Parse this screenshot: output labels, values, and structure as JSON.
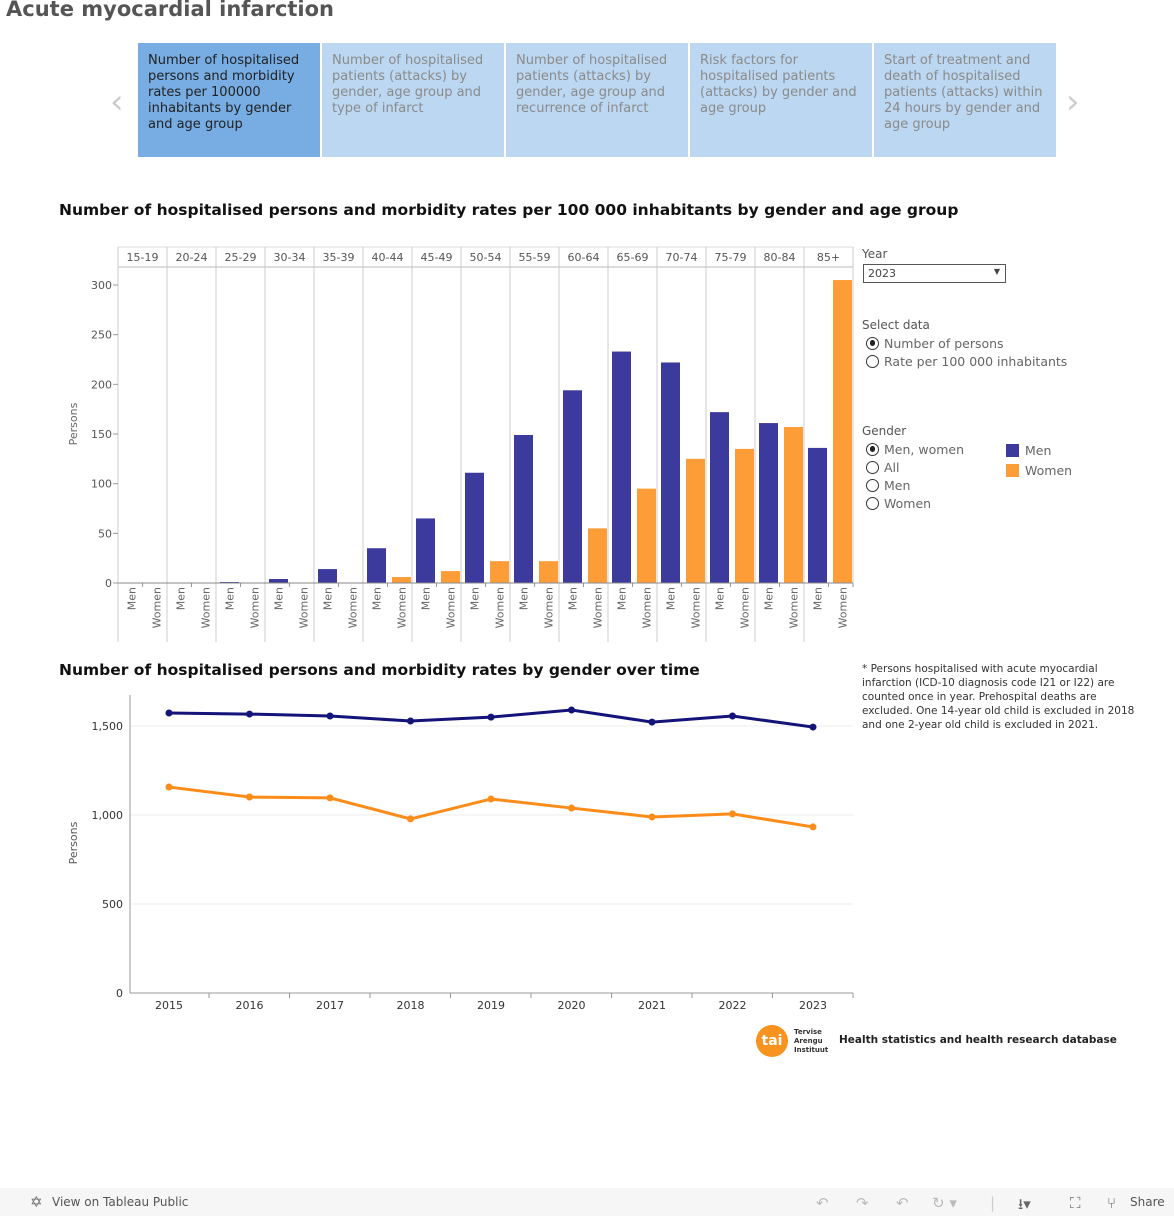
{
  "page_title": "Acute myocardial infarction",
  "tabs": [
    {
      "label": "Number of hospitalised persons and morbidity rates per 100000 inhabitants by gender and age group",
      "active": true
    },
    {
      "label": "Number of hospitalised patients (attacks) by gender, age group and type of infarct",
      "active": false
    },
    {
      "label": "Number of hospitalised patients (attacks) by gender, age group and recurrence of infarct",
      "active": false
    },
    {
      "label": "Risk factors for hospitalised patients (attacks) by gender and age group",
      "active": false
    },
    {
      "label": "Start of treatment and death of hospitalised patients (attacks) within 24 hours by gender and age group",
      "active": false
    }
  ],
  "nav": {
    "prev_icon": "chevron-left",
    "next_icon": "chevron-right"
  },
  "filters": {
    "year_label": "Year",
    "year_value": "2023",
    "select_data_label": "Select data",
    "select_data_options": [
      "Number of persons",
      "Rate per 100 000 inhabitants"
    ],
    "select_data_selected": 0,
    "gender_label": "Gender",
    "gender_options": [
      "Men, women",
      "All",
      "Men",
      "Women"
    ],
    "gender_selected": 0
  },
  "legend": [
    {
      "label": "Men",
      "color": "#3c3a9c"
    },
    {
      "label": "Women",
      "color": "#fd9d37"
    }
  ],
  "chart_data": [
    {
      "type": "bar",
      "title": "Number of hospitalised persons and morbidity rates per 100 000 inhabitants by gender and age group",
      "ylabel": "Persons",
      "ylim": [
        0,
        320
      ],
      "yticks": [
        0,
        50,
        100,
        150,
        200,
        250,
        300
      ],
      "categories": [
        "15-19",
        "20-24",
        "25-29",
        "30-34",
        "35-39",
        "40-44",
        "45-49",
        "50-54",
        "55-59",
        "60-64",
        "65-69",
        "70-74",
        "75-79",
        "80-84",
        "85+"
      ],
      "subcategories": [
        "Men",
        "Women"
      ],
      "series": [
        {
          "name": "Men",
          "color": "#3c3a9c",
          "values": [
            0,
            0,
            1,
            4,
            14,
            35,
            65,
            111,
            149,
            194,
            233,
            222,
            172,
            161,
            136
          ]
        },
        {
          "name": "Women",
          "color": "#fd9d37",
          "values": [
            0,
            0,
            0,
            0,
            0,
            6,
            12,
            22,
            22,
            55,
            95,
            125,
            135,
            157,
            305
          ]
        }
      ],
      "grid": "vertical separators"
    },
    {
      "type": "line",
      "title": "Number of hospitalised persons and morbidity rates by gender over time",
      "ylabel": "Persons",
      "ylim": [
        0,
        1650
      ],
      "yticks": [
        0,
        500,
        1000,
        1500
      ],
      "ytick_labels": [
        "0",
        "500",
        "1,000",
        "1,500"
      ],
      "x": [
        "2015",
        "2016",
        "2017",
        "2018",
        "2019",
        "2020",
        "2021",
        "2022",
        "2023"
      ],
      "series": [
        {
          "name": "Men",
          "color": "#13137a",
          "values": [
            1573,
            1567,
            1556,
            1528,
            1550,
            1590,
            1522,
            1556,
            1494
          ]
        },
        {
          "name": "Women",
          "color": "#fb8c1a",
          "values": [
            1157,
            1101,
            1096,
            978,
            1090,
            1039,
            989,
            1006,
            933
          ]
        }
      ],
      "grid": "horizontal"
    }
  ],
  "footnote": "* Persons hospitalised with acute myocardial infarction (ICD-10 diagnosis code I21 or I22) are counted once in year. Prehospital deaths are excluded. One 14-year old child is excluded in 2018 and one 2-year old child is excluded in 2021.",
  "logo": {
    "mark": "tai",
    "text": "Tervise Arengu Instituut"
  },
  "database_label": "Health statistics and health research database",
  "toolbar": {
    "view_on": "View on Tableau Public",
    "share": "Share"
  }
}
